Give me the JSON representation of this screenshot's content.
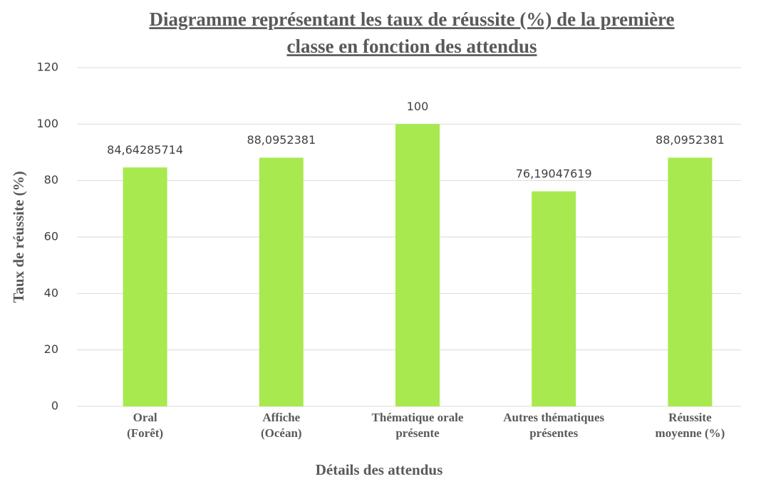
{
  "chart_data": {
    "type": "bar",
    "title": [
      "Diagramme représentant les taux de réussite (%) de la première",
      "classe en fonction des attendus"
    ],
    "x_label": "Détails des attendus",
    "y_label": "Taux de réussite (%)",
    "categories": [
      [
        "Oral",
        "(Forêt)"
      ],
      [
        "Affiche",
        "(Océan)"
      ],
      [
        "Thématique orale",
        "présente"
      ],
      [
        "Autres thématiques",
        "présentes"
      ],
      [
        "Réussite",
        "moyenne (%)"
      ]
    ],
    "values": [
      84.64285714,
      88.0952381,
      100,
      76.19047619,
      88.0952381
    ],
    "value_labels": [
      "84,64285714",
      "88,0952381",
      "100",
      "76,19047619",
      "88,0952381"
    ],
    "color": "#a8e94f",
    "ylim": [
      0,
      120
    ],
    "yticks": [
      0,
      20,
      40,
      60,
      80,
      100,
      120
    ],
    "grid": true
  }
}
